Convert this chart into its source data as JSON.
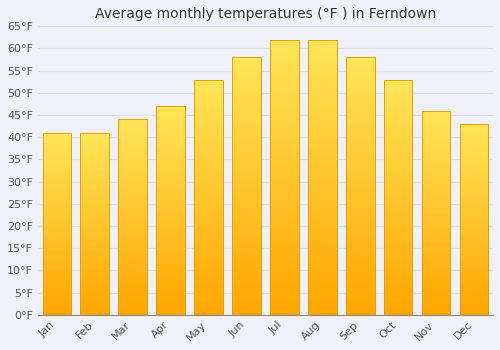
{
  "title": "Average monthly temperatures (°F ) in Ferndown",
  "months": [
    "Jan",
    "Feb",
    "Mar",
    "Apr",
    "May",
    "Jun",
    "Jul",
    "Aug",
    "Sep",
    "Oct",
    "Nov",
    "Dec"
  ],
  "values": [
    41,
    41,
    44,
    47,
    53,
    58,
    62,
    62,
    58,
    53,
    46,
    43
  ],
  "bar_color_top": "#FFD966",
  "bar_color_bottom": "#FFA500",
  "bar_edge_color": "#E8A000",
  "ylim": [
    0,
    65
  ],
  "yticks": [
    0,
    5,
    10,
    15,
    20,
    25,
    30,
    35,
    40,
    45,
    50,
    55,
    60,
    65
  ],
  "background_color": "#F0F0F8",
  "plot_bg_color": "#F0F0F8",
  "grid_color": "#DDDDEE",
  "title_fontsize": 10,
  "tick_fontsize": 8,
  "font_family": "DejaVu Sans",
  "bar_width": 0.75
}
